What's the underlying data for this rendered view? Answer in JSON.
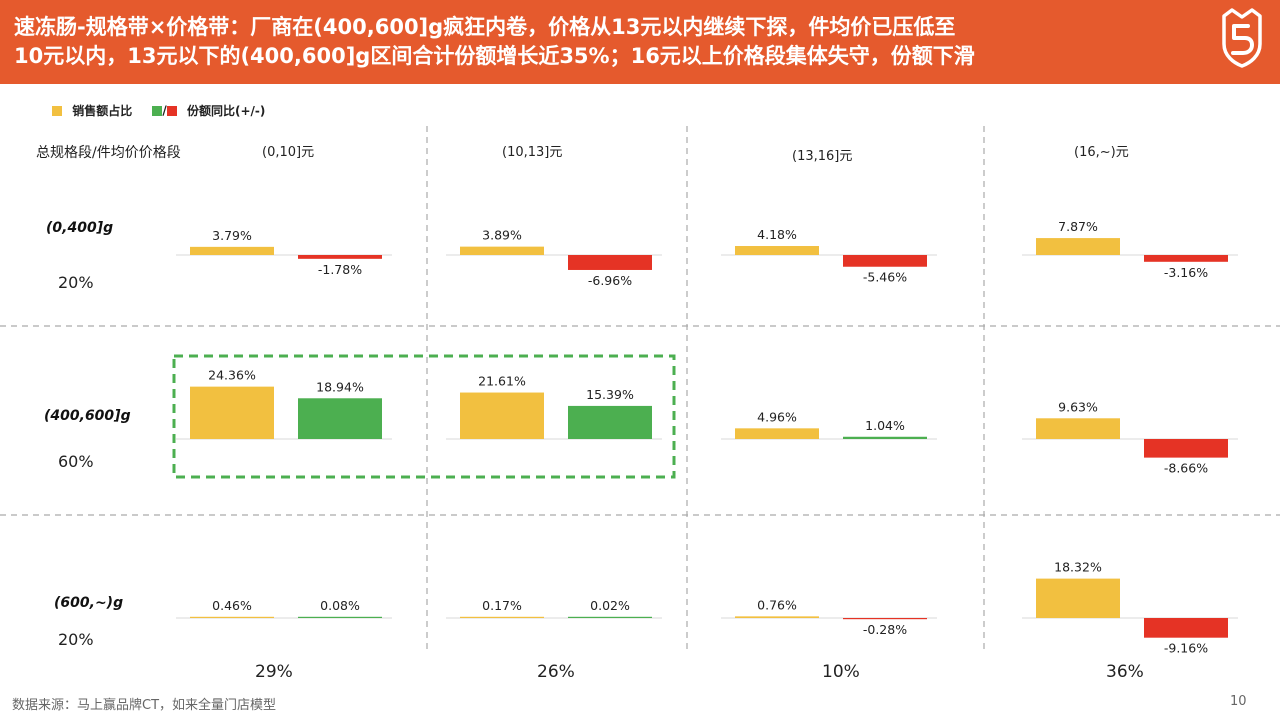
{
  "header": {
    "title_line1": "速冻肠-规格带×价格带：厂商在(400,600]g疯狂内卷，价格从13元以内继续下探，件均价已压低至",
    "title_line2": "10元以内，13元以下的(400,600]g区间合计份额增长近35%；16元以上价格段集体失守，份额下滑"
  },
  "chart_data": {
    "type": "bar",
    "legend": {
      "sales_share": "销售额占比",
      "slash": "/",
      "yoy": "份额同比(+/-)"
    },
    "axis_title": "总规格段/件均价价格段",
    "columns": [
      "(0,10]元",
      "(10,13]元",
      "(13,16]元",
      "(16,~)元"
    ],
    "column_totals": [
      "29%",
      "26%",
      "10%",
      "36%"
    ],
    "rows": [
      "(0,400]g",
      "(400,600]g",
      "(600,~)g"
    ],
    "row_totals": [
      "20%",
      "60%",
      "20%"
    ],
    "series": [
      {
        "name": "销售额占比",
        "values": [
          [
            3.79,
            3.89,
            4.18,
            7.87
          ],
          [
            24.36,
            21.61,
            4.96,
            9.63
          ],
          [
            0.46,
            0.17,
            0.76,
            18.32
          ]
        ],
        "labels": [
          [
            "3.79%",
            "3.89%",
            "4.18%",
            "7.87%"
          ],
          [
            "24.36%",
            "21.61%",
            "4.96%",
            "9.63%"
          ],
          [
            "0.46%",
            "0.17%",
            "0.76%",
            "18.32%"
          ]
        ]
      },
      {
        "name": "份额同比(+/-)",
        "values": [
          [
            -1.78,
            -6.96,
            -5.46,
            -3.16
          ],
          [
            18.94,
            15.39,
            1.04,
            -8.66
          ],
          [
            0.08,
            0.02,
            -0.28,
            -9.16
          ]
        ],
        "labels": [
          [
            "-1.78%",
            "-6.96%",
            "-5.46%",
            "-3.16%"
          ],
          [
            "18.94%",
            "15.39%",
            "1.04%",
            "-8.66%"
          ],
          [
            "0.08%",
            "0.02%",
            "-0.28%",
            "-9.16%"
          ]
        ]
      }
    ],
    "colors": {
      "share": "#f2c040",
      "positive": "#4caf50",
      "negative": "#e53325",
      "highlight": "#4caf50"
    },
    "highlight": {
      "row": 1,
      "columns": [
        0,
        1
      ]
    }
  },
  "footer": {
    "source": "数据来源：马上赢品牌CT，如来全量门店模型",
    "page": "10"
  }
}
